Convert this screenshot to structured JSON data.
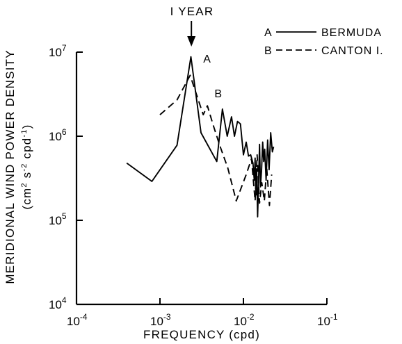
{
  "chart_data": {
    "type": "line",
    "xscale": "log",
    "yscale": "log",
    "xlabel": "FREQUENCY (cpd)",
    "ylabel_line1": "MERIDIONAL WIND POWER DENSITY",
    "ylabel_line2_pre": "(cm",
    "ylabel_line2_mid": " s",
    "ylabel_line2_mid2": " cpd",
    "ylabel_line2_post": ")",
    "ylabel_sup1": "2",
    "ylabel_sup2": "-2",
    "ylabel_sup3": "-1",
    "xlim": [
      0.0001,
      0.1
    ],
    "ylim": [
      10000,
      10000000
    ],
    "x_ticks": [
      {
        "base": "10",
        "exp": "-4",
        "value": 0.0001
      },
      {
        "base": "10",
        "exp": "-3",
        "value": 0.001
      },
      {
        "base": "10",
        "exp": "-2",
        "value": 0.01
      },
      {
        "base": "10",
        "exp": "-1",
        "value": 0.1
      }
    ],
    "y_ticks": [
      {
        "base": "10",
        "exp": "4",
        "value": 10000
      },
      {
        "base": "10",
        "exp": "5",
        "value": 100000
      },
      {
        "base": "10",
        "exp": "6",
        "value": 1000000
      },
      {
        "base": "10",
        "exp": "7",
        "value": 10000000
      }
    ],
    "annotation": {
      "label": "I YEAR",
      "x": 0.00238
    },
    "legend_position": "top-right",
    "series": [
      {
        "name": "BERMUDA",
        "key": "A",
        "style": "solid",
        "x": [
          0.0004,
          0.0008,
          0.0016,
          0.00235,
          0.0031,
          0.0048,
          0.0056,
          0.0064,
          0.0072,
          0.0078,
          0.0085,
          0.0092,
          0.01,
          0.0108,
          0.0115,
          0.0122,
          0.013,
          0.0135,
          0.0138,
          0.0141,
          0.0144,
          0.0148,
          0.0152,
          0.0156,
          0.016,
          0.0165,
          0.017,
          0.0175,
          0.018,
          0.0187,
          0.0195,
          0.0203,
          0.0212,
          0.0222,
          0.023
        ],
        "y": [
          480000,
          290000,
          780000,
          8800000,
          1100000,
          500000,
          2100000,
          1000000,
          1700000,
          1000000,
          1500000,
          1400000,
          600000,
          850000,
          580000,
          600000,
          480000,
          300000,
          550000,
          200000,
          410000,
          110000,
          300000,
          800000,
          250000,
          400000,
          850000,
          500000,
          700000,
          300000,
          900000,
          400000,
          1100000,
          650000,
          750000
        ]
      },
      {
        "name": "CANTON I.",
        "key": "B",
        "style": "dashed",
        "x": [
          0.001,
          0.0016,
          0.0023,
          0.0033,
          0.0037,
          0.0043,
          0.0052,
          0.0065,
          0.0082,
          0.0108,
          0.0125,
          0.0138,
          0.0146,
          0.0156,
          0.0166,
          0.0178,
          0.019,
          0.0205,
          0.0218
        ],
        "y": [
          1800000,
          2700000,
          5300000,
          1800000,
          2300000,
          1400000,
          780000,
          420000,
          170000,
          350000,
          540000,
          170000,
          600000,
          160000,
          280000,
          170000,
          420000,
          150000,
          350000
        ]
      }
    ],
    "curve_labels": [
      {
        "text": "A",
        "x": 0.0033,
        "y": 7500000
      },
      {
        "text": "B",
        "x": 0.0045,
        "y": 2900000
      }
    ]
  }
}
